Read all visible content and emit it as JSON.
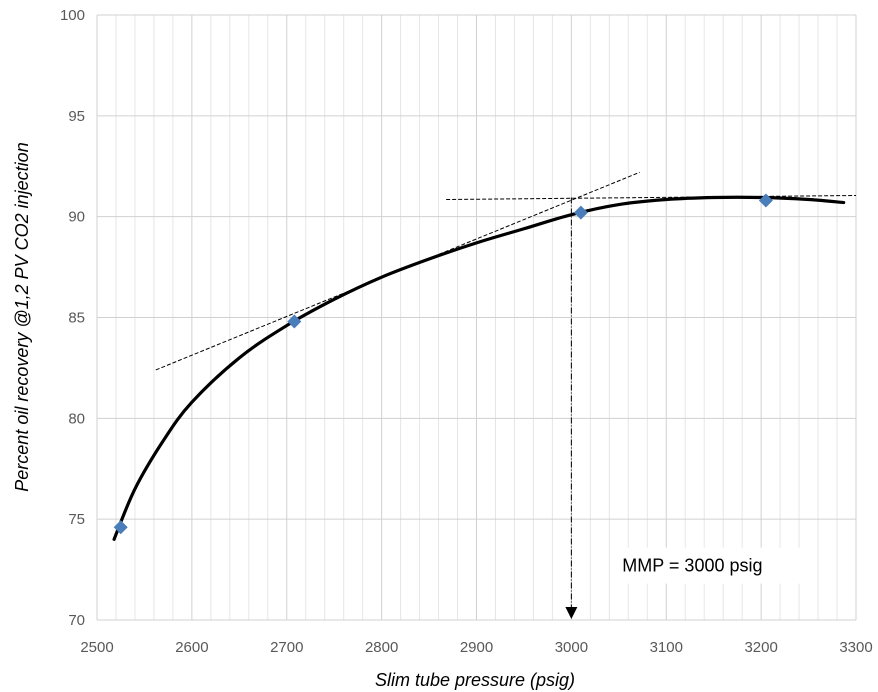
{
  "chart_data": {
    "type": "scatter",
    "xlabel": "Slim tube pressure (psig)",
    "ylabel": "Percent oil recovery @1,2 PV CO2 injection",
    "xlim": [
      2500,
      3300
    ],
    "ylim": [
      70,
      100
    ],
    "x_ticks": [
      "2500",
      "2600",
      "2700",
      "2800",
      "2900",
      "3000",
      "3100",
      "3200",
      "3300"
    ],
    "y_ticks": [
      "70",
      "75",
      "80",
      "85",
      "90",
      "95",
      "100"
    ],
    "grid": "major and minor gridlines",
    "series": [
      {
        "points": [
          {
            "x": 2525,
            "y": 74.6
          },
          {
            "x": 2708,
            "y": 84.8
          },
          {
            "x": 3010,
            "y": 90.2
          },
          {
            "x": 3205,
            "y": 90.8
          }
        ],
        "marker": "diamond",
        "color": "#4a7ebb"
      }
    ],
    "fit_curve": {
      "style": "solid",
      "color": "#000000",
      "points": [
        {
          "x": 2518,
          "y": 74.0
        },
        {
          "x": 2540,
          "y": 76.5
        },
        {
          "x": 2570,
          "y": 78.9
        },
        {
          "x": 2600,
          "y": 80.8
        },
        {
          "x": 2650,
          "y": 83.0
        },
        {
          "x": 2700,
          "y": 84.6
        },
        {
          "x": 2750,
          "y": 85.9
        },
        {
          "x": 2800,
          "y": 87.0
        },
        {
          "x": 2850,
          "y": 87.9
        },
        {
          "x": 2900,
          "y": 88.7
        },
        {
          "x": 2950,
          "y": 89.4
        },
        {
          "x": 3000,
          "y": 90.1
        },
        {
          "x": 3050,
          "y": 90.6
        },
        {
          "x": 3100,
          "y": 90.85
        },
        {
          "x": 3150,
          "y": 90.95
        },
        {
          "x": 3200,
          "y": 90.95
        },
        {
          "x": 3250,
          "y": 90.85
        },
        {
          "x": 3287,
          "y": 90.7
        }
      ]
    },
    "tangent_lines": [
      {
        "style": "dashed",
        "from": {
          "x": 2562,
          "y": 82.4
        },
        "to": {
          "x": 3072,
          "y": 92.2
        }
      },
      {
        "style": "dashed",
        "from": {
          "x": 2868,
          "y": 90.85
        },
        "to": {
          "x": 3300,
          "y": 91.05
        }
      }
    ],
    "mmp_line": {
      "style": "dash-dot",
      "x": 3000,
      "from_y": 90.95,
      "to_y": 70,
      "arrow": "down"
    },
    "annotation": {
      "text": "MMP = 3000 psig",
      "x": 3100,
      "y": 72.4
    }
  }
}
